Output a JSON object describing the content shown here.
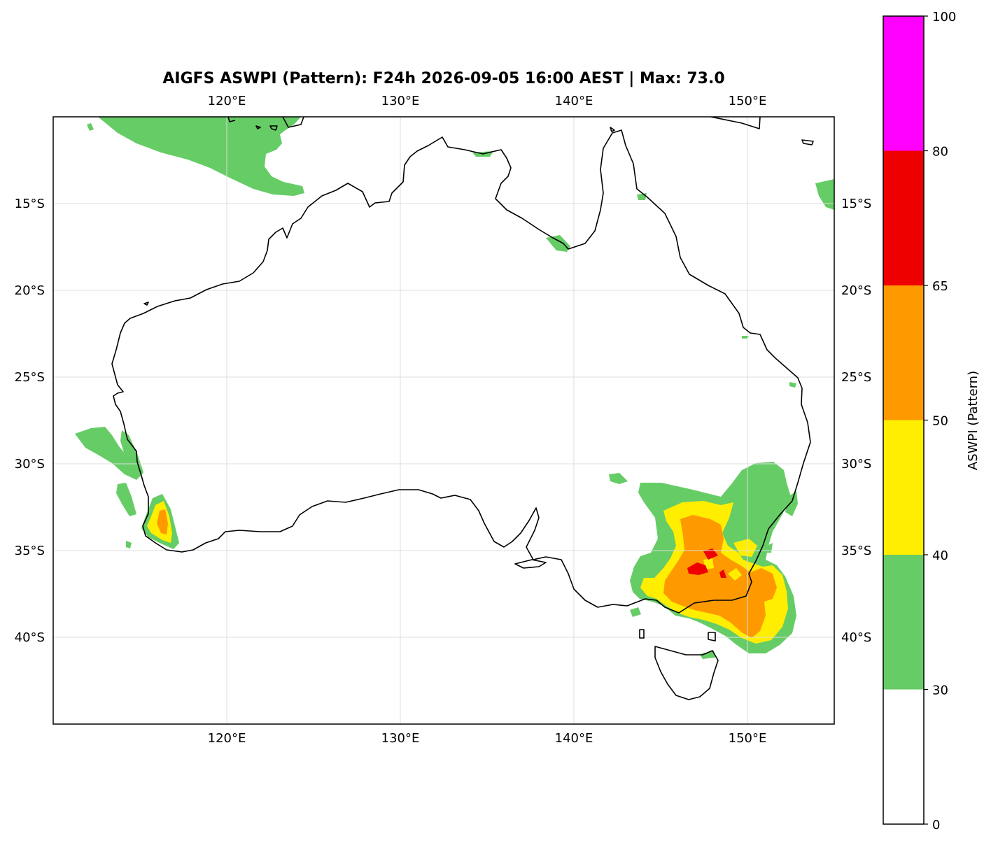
{
  "title": "AIGFS ASWPI (Pattern): F24h 2026-09-05 16:00 AEST | Max: 73.0",
  "chart_data": {
    "type": "heatmap",
    "map_extent": {
      "lon": [
        110,
        155
      ],
      "lat": [
        -45,
        -10
      ]
    },
    "x_ticks": [
      "120°E",
      "130°E",
      "140°E",
      "150°E"
    ],
    "y_ticks": [
      "15°S",
      "20°S",
      "25°S",
      "30°S",
      "35°S",
      "40°S"
    ],
    "gridlines": true,
    "max_value": 73.0,
    "colorbar": {
      "label": "ASWPI (Pattern)",
      "levels": [
        0,
        30,
        40,
        50,
        65,
        80,
        100
      ],
      "tick_labels": [
        "0",
        "30",
        "40",
        "50",
        "65",
        "80",
        "100"
      ],
      "colors": [
        "#ffffff",
        "#66cc66",
        "#ffee00",
        "#ff9900",
        "#ee0000",
        "#ff00ff"
      ]
    },
    "regions": [
      {
        "name": "Timor Sea band",
        "level": "30-40"
      },
      {
        "name": "Southwest WA",
        "level": "30-50",
        "peak_level": "40-50"
      },
      {
        "name": "Gulf of Carpentaria coast",
        "level": "30-40"
      },
      {
        "name": "Southeast Australia (NSW / Victoria / Bass Strait)",
        "level": "30-73",
        "peak_level": "65-80"
      },
      {
        "name": "Eastern Coral Sea edge",
        "level": "30-40"
      }
    ]
  }
}
